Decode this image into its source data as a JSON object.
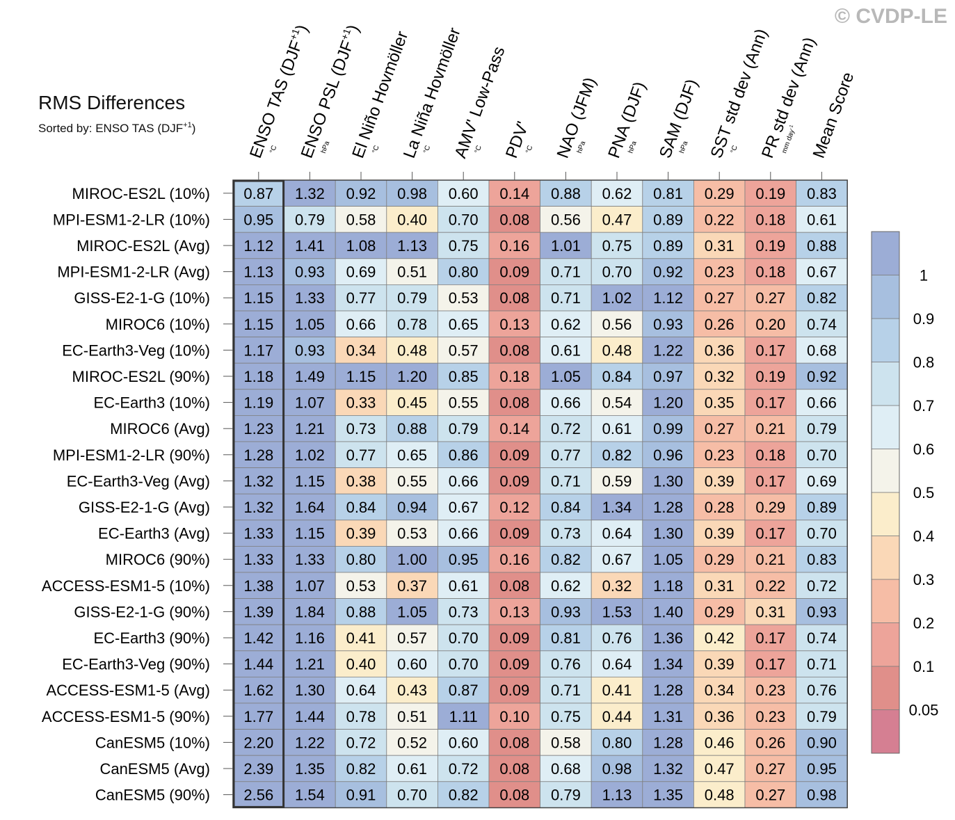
{
  "watermark": "© CVDP-LE",
  "title": "RMS Differences",
  "sort_prefix": "Sorted by: ENSO TAS (DJF",
  "sort_superscript": "+1",
  "sort_suffix": ")",
  "chart_data": {
    "type": "heatmap",
    "title": "RMS Differences",
    "subtitle": "Sorted by: ENSO TAS (DJF+1)",
    "columns": [
      {
        "label": "ENSO TAS (DJF",
        "sup": "+1",
        "close": ")",
        "unit": "°C"
      },
      {
        "label": "ENSO PSL (DJF",
        "sup": "+1",
        "close": ")",
        "unit": "hPa"
      },
      {
        "label": "El Niño Hovmöller",
        "sup": "",
        "close": "",
        "unit": "°C"
      },
      {
        "label": "La Niña Hovmöller",
        "sup": "",
        "close": "",
        "unit": "°C"
      },
      {
        "label": "AMV' Low-Pass",
        "sup": "",
        "close": "",
        "unit": "°C"
      },
      {
        "label": "PDV'",
        "sup": "",
        "close": "",
        "unit": "°C"
      },
      {
        "label": "NAO (JFM)",
        "sup": "",
        "close": "",
        "unit": "hPa"
      },
      {
        "label": "PNA (DJF)",
        "sup": "",
        "close": "",
        "unit": "hPa"
      },
      {
        "label": "SAM (DJF)",
        "sup": "",
        "close": "",
        "unit": "hPa"
      },
      {
        "label": "SST std dev (Ann)",
        "sup": "",
        "close": "",
        "unit": "°C"
      },
      {
        "label": "PR std dev (Ann)",
        "sup": "",
        "close": "",
        "unit": "mm day",
        "unit_sup": "-1"
      },
      {
        "label": "Mean Score",
        "sup": "",
        "close": "",
        "unit": ""
      }
    ],
    "rows": [
      "MIROC-ES2L (10%)",
      "MPI-ESM1-2-LR (10%)",
      "MIROC-ES2L (Avg)",
      "MPI-ESM1-2-LR (Avg)",
      "GISS-E2-1-G (10%)",
      "MIROC6 (10%)",
      "EC-Earth3-Veg (10%)",
      "MIROC-ES2L (90%)",
      "EC-Earth3 (10%)",
      "MIROC6 (Avg)",
      "MPI-ESM1-2-LR (90%)",
      "EC-Earth3-Veg (Avg)",
      "GISS-E2-1-G (Avg)",
      "EC-Earth3 (Avg)",
      "MIROC6 (90%)",
      "ACCESS-ESM1-5 (10%)",
      "GISS-E2-1-G (90%)",
      "EC-Earth3 (90%)",
      "EC-Earth3-Veg (90%)",
      "ACCESS-ESM1-5 (Avg)",
      "ACCESS-ESM1-5 (90%)",
      "CanESM5 (10%)",
      "CanESM5 (Avg)",
      "CanESM5 (90%)"
    ],
    "values": [
      [
        0.87,
        1.32,
        0.92,
        0.98,
        0.6,
        0.14,
        0.88,
        0.62,
        0.81,
        0.29,
        0.19,
        0.83
      ],
      [
        0.95,
        0.79,
        0.58,
        0.4,
        0.7,
        0.08,
        0.56,
        0.47,
        0.89,
        0.22,
        0.18,
        0.61
      ],
      [
        1.12,
        1.41,
        1.08,
        1.13,
        0.75,
        0.16,
        1.01,
        0.75,
        0.89,
        0.31,
        0.19,
        0.88
      ],
      [
        1.13,
        0.93,
        0.69,
        0.51,
        0.8,
        0.09,
        0.71,
        0.7,
        0.92,
        0.23,
        0.18,
        0.67
      ],
      [
        1.15,
        1.33,
        0.77,
        0.79,
        0.53,
        0.08,
        0.71,
        1.02,
        1.12,
        0.27,
        0.27,
        0.82
      ],
      [
        1.15,
        1.05,
        0.66,
        0.78,
        0.65,
        0.13,
        0.62,
        0.56,
        0.93,
        0.26,
        0.2,
        0.74
      ],
      [
        1.17,
        0.93,
        0.34,
        0.48,
        0.57,
        0.08,
        0.61,
        0.48,
        1.22,
        0.36,
        0.17,
        0.68
      ],
      [
        1.18,
        1.49,
        1.15,
        1.2,
        0.85,
        0.18,
        1.05,
        0.84,
        0.97,
        0.32,
        0.19,
        0.92
      ],
      [
        1.19,
        1.07,
        0.33,
        0.45,
        0.55,
        0.08,
        0.66,
        0.54,
        1.2,
        0.35,
        0.17,
        0.66
      ],
      [
        1.23,
        1.21,
        0.73,
        0.88,
        0.79,
        0.14,
        0.72,
        0.61,
        0.99,
        0.27,
        0.21,
        0.79
      ],
      [
        1.28,
        1.02,
        0.77,
        0.65,
        0.86,
        0.09,
        0.77,
        0.82,
        0.96,
        0.23,
        0.18,
        0.7
      ],
      [
        1.32,
        1.15,
        0.38,
        0.55,
        0.66,
        0.09,
        0.71,
        0.59,
        1.3,
        0.39,
        0.17,
        0.69
      ],
      [
        1.32,
        1.64,
        0.84,
        0.94,
        0.67,
        0.12,
        0.84,
        1.34,
        1.28,
        0.28,
        0.29,
        0.89
      ],
      [
        1.33,
        1.15,
        0.39,
        0.53,
        0.66,
        0.09,
        0.73,
        0.64,
        1.3,
        0.39,
        0.17,
        0.7
      ],
      [
        1.33,
        1.33,
        0.8,
        1.0,
        0.95,
        0.16,
        0.82,
        0.67,
        1.05,
        0.29,
        0.21,
        0.83
      ],
      [
        1.38,
        1.07,
        0.53,
        0.37,
        0.61,
        0.08,
        0.62,
        0.32,
        1.18,
        0.31,
        0.22,
        0.72
      ],
      [
        1.39,
        1.84,
        0.88,
        1.05,
        0.73,
        0.13,
        0.93,
        1.53,
        1.4,
        0.29,
        0.31,
        0.93
      ],
      [
        1.42,
        1.16,
        0.41,
        0.57,
        0.7,
        0.09,
        0.81,
        0.76,
        1.36,
        0.42,
        0.17,
        0.74
      ],
      [
        1.44,
        1.21,
        0.4,
        0.6,
        0.7,
        0.09,
        0.76,
        0.64,
        1.34,
        0.39,
        0.17,
        0.71
      ],
      [
        1.62,
        1.3,
        0.64,
        0.43,
        0.87,
        0.09,
        0.71,
        0.41,
        1.28,
        0.34,
        0.23,
        0.76
      ],
      [
        1.77,
        1.44,
        0.78,
        0.51,
        1.11,
        0.1,
        0.75,
        0.44,
        1.31,
        0.36,
        0.23,
        0.79
      ],
      [
        2.2,
        1.22,
        0.72,
        0.52,
        0.6,
        0.08,
        0.58,
        0.8,
        1.28,
        0.46,
        0.26,
        0.9
      ],
      [
        2.39,
        1.35,
        0.82,
        0.61,
        0.72,
        0.08,
        0.68,
        0.98,
        1.32,
        0.47,
        0.27,
        0.95
      ],
      [
        2.56,
        1.54,
        0.91,
        0.7,
        0.82,
        0.08,
        0.79,
        1.13,
        1.35,
        0.48,
        0.27,
        0.98
      ]
    ],
    "sorted_column": 0,
    "colorbar": {
      "boundaries": [
        0.05,
        0.1,
        0.2,
        0.3,
        0.4,
        0.5,
        0.6,
        0.7,
        0.8,
        0.9,
        1
      ],
      "labels": [
        "0.05",
        "0.1",
        "0.2",
        "0.3",
        "0.4",
        "0.5",
        "0.6",
        "0.7",
        "0.8",
        "0.9",
        "1"
      ],
      "colors": [
        "#d57f92",
        "#e08f8a",
        "#eda49a",
        "#f6bda6",
        "#fad8b7",
        "#fbedcb",
        "#f4f3ea",
        "#dfeef5",
        "#cde3ee",
        "#b7d1e8",
        "#a7bfdf",
        "#9cadd6"
      ]
    }
  }
}
